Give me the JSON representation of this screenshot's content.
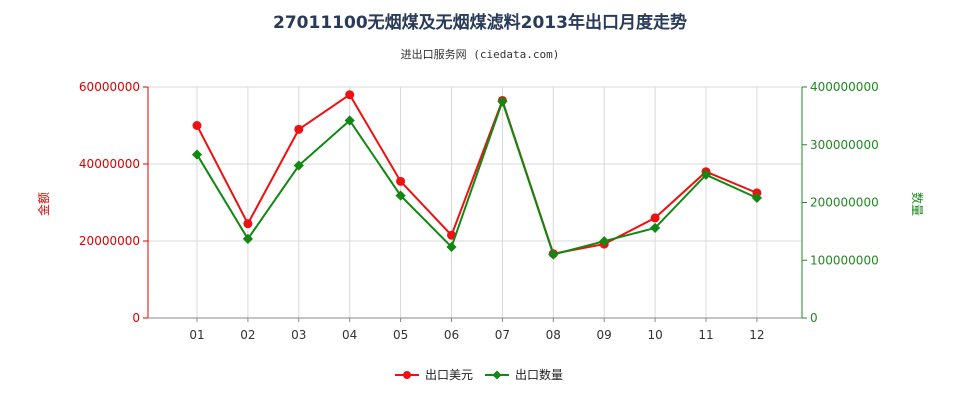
{
  "chart_data": {
    "type": "line",
    "title": "27011100无烟煤及无烟煤滤料2013年出口月度走势",
    "subtitle": "进出口服务网 (ciedata.com)",
    "categories": [
      "01",
      "02",
      "03",
      "04",
      "05",
      "06",
      "07",
      "08",
      "09",
      "10",
      "11",
      "12"
    ],
    "y_left": {
      "label": "金额",
      "ylim": [
        0,
        60000000
      ],
      "ticks": [
        "0",
        "20000000",
        "40000000",
        "60000000"
      ],
      "color": "#dd0000"
    },
    "y_right": {
      "label": "数量",
      "ylim": [
        0,
        400000000
      ],
      "ticks": [
        "0",
        "100000000",
        "200000000",
        "300000000",
        "400000000"
      ],
      "color": "#228822"
    },
    "series": [
      {
        "name": "出口美元",
        "axis": "left",
        "color": "#ee1111",
        "values": [
          50000000,
          24500000,
          49000000,
          58000000,
          35500000,
          21500000,
          56500000,
          16700000,
          19200000,
          26000000,
          38000000,
          32500000
        ]
      },
      {
        "name": "出口数量",
        "axis": "right",
        "color": "#118811",
        "values": [
          283000000,
          137000000,
          264000000,
          342000000,
          212000000,
          123000000,
          375000000,
          110000000,
          133000000,
          156000000,
          248000000,
          208000000
        ]
      }
    ],
    "grid": true,
    "legend": "bottom-center"
  }
}
